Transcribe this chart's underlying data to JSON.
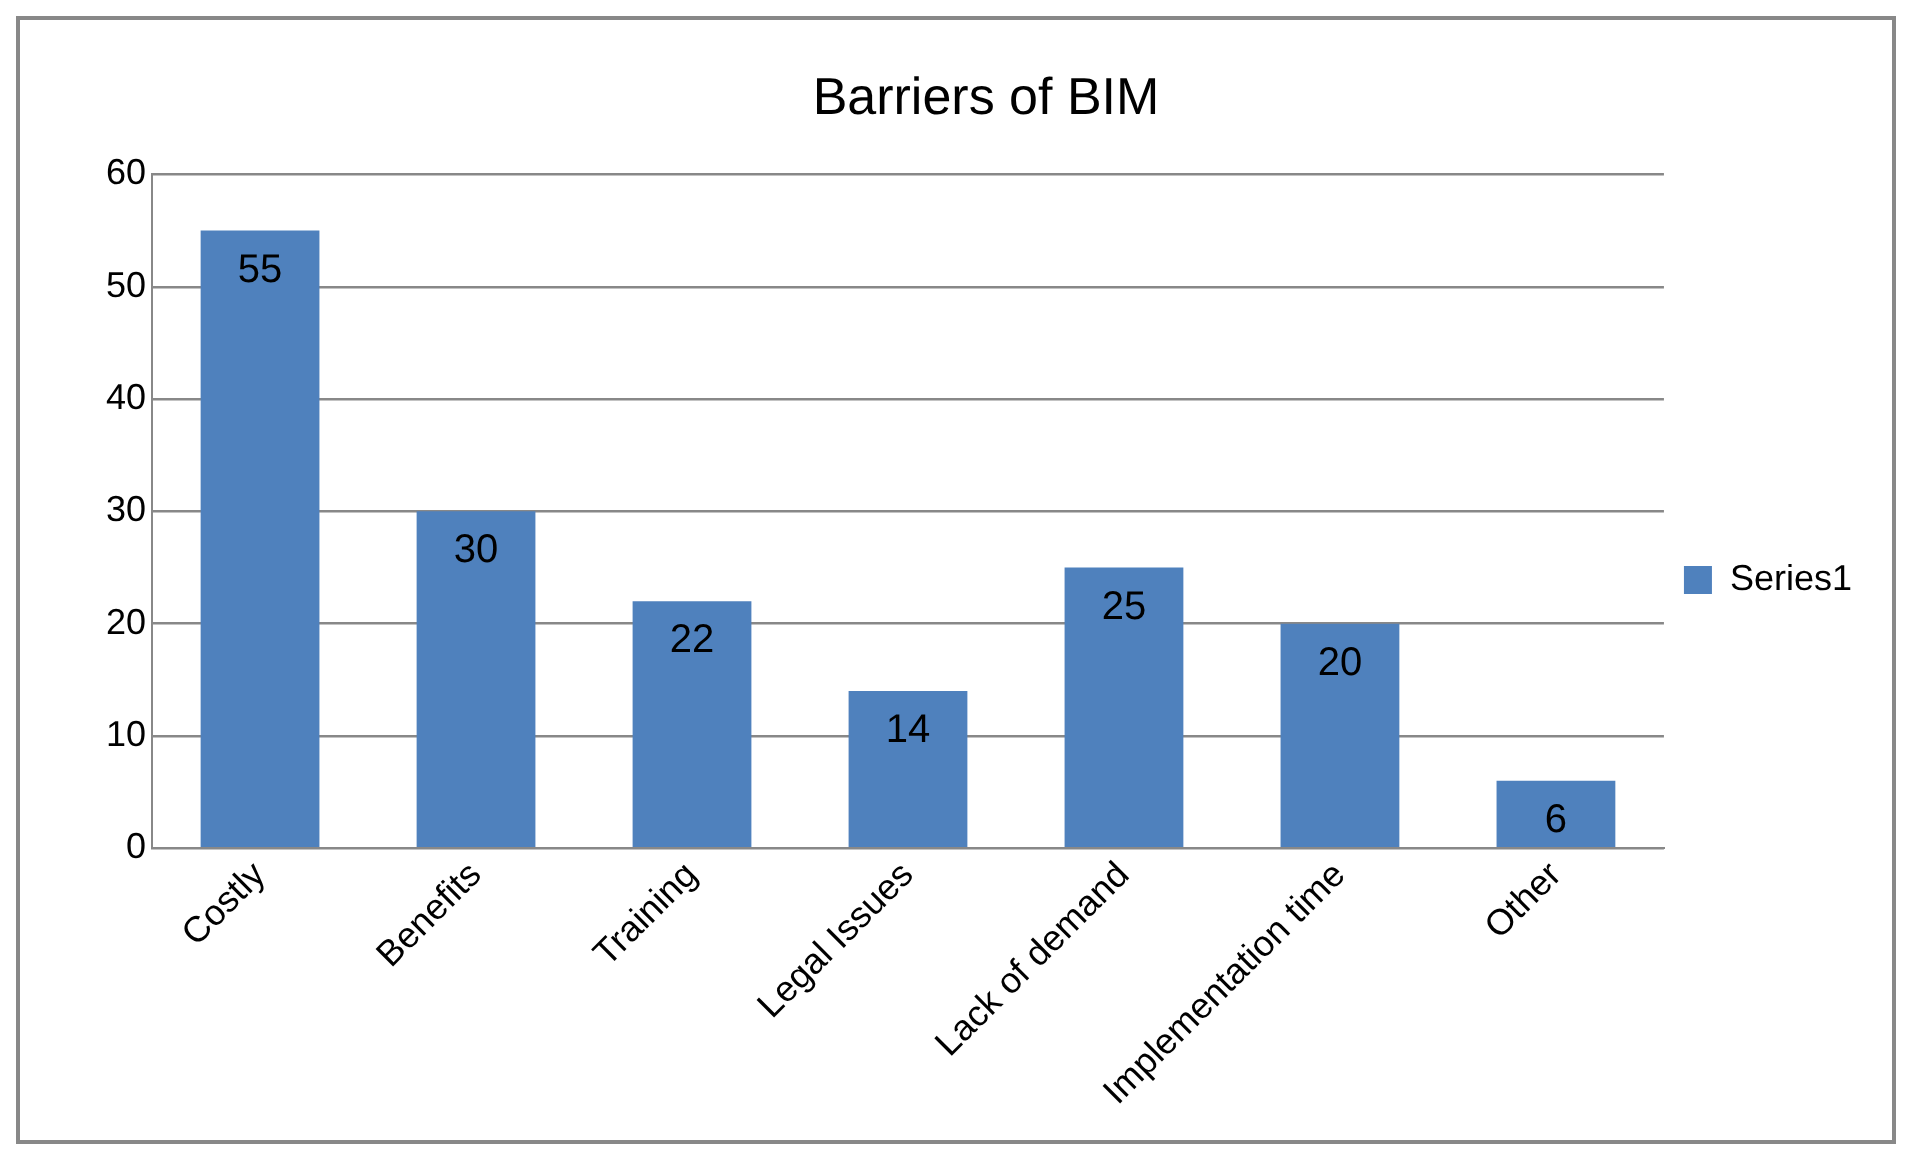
{
  "chart_data": {
    "type": "bar",
    "title": "Barriers of BIM",
    "categories": [
      "Costly",
      "Benefits",
      "Training",
      "Legal Issues",
      "Lack of demand",
      "Implementation time",
      "Other"
    ],
    "series": [
      {
        "name": "Series1",
        "color": "#4f81bd",
        "values": [
          55,
          30,
          22,
          14,
          25,
          20,
          6
        ]
      }
    ],
    "ylim": [
      0,
      60
    ],
    "yticks": [
      0,
      10,
      20,
      30,
      40,
      50,
      60
    ],
    "grid": "y",
    "legend": "right",
    "data_labels": true
  }
}
